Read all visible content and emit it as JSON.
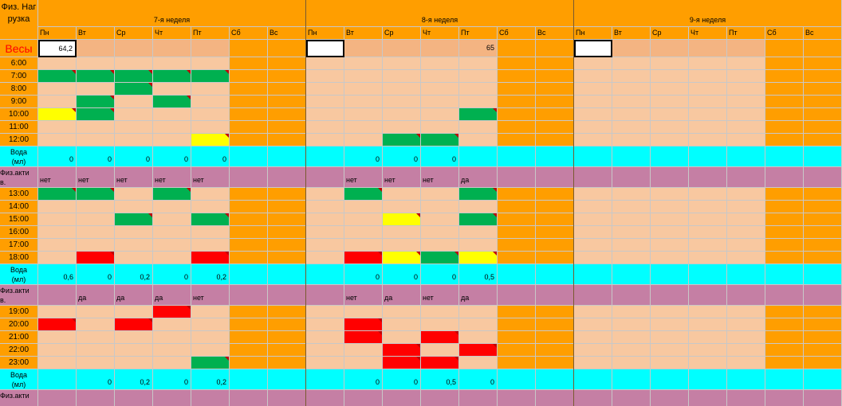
{
  "colors": {
    "orange": "#ff9e00",
    "peach": "#f8c8a0",
    "peach_alt": "#f4b482",
    "green": "#00b050",
    "yellow": "#ffff00",
    "red": "#ff0000",
    "cyan": "#00ffff",
    "mauve": "#c57fa4",
    "white": "#ffffff",
    "weight_red": "#ff0000"
  },
  "corner_label": "Физ. Нагрузка",
  "weights_label": "Весы",
  "weeks": [
    "7-я неделя",
    "8-я неделя",
    "9-я неделя"
  ],
  "days": [
    "Пн",
    "Вт",
    "Ср",
    "Чт",
    "Пт",
    "Сб",
    "Вс"
  ],
  "weights": [
    [
      "64,2",
      "",
      "",
      "",
      "",
      "",
      ""
    ],
    [
      "",
      "",
      "",
      "",
      "65",
      "",
      ""
    ],
    [
      "",
      "",
      "",
      "",
      "",
      "",
      ""
    ]
  ],
  "rows": [
    {
      "type": "time",
      "label": "6:00",
      "cells": [
        [
          "",
          "",
          "",
          "",
          "",
          "",
          ""
        ],
        [
          "",
          "",
          "",
          "",
          "",
          "",
          ""
        ],
        [
          "",
          "",
          "",
          "",
          "",
          "",
          ""
        ]
      ]
    },
    {
      "type": "time",
      "label": "7:00",
      "cells": [
        [
          "G",
          "G",
          "G",
          "G",
          "G",
          "",
          ""
        ],
        [
          "",
          "",
          "",
          "",
          "",
          "",
          ""
        ],
        [
          "",
          "",
          "",
          "",
          "",
          "",
          ""
        ]
      ]
    },
    {
      "type": "time",
      "label": "8:00",
      "cells": [
        [
          "",
          "",
          "G",
          "",
          "",
          "",
          ""
        ],
        [
          "",
          "",
          "",
          "",
          "",
          "",
          ""
        ],
        [
          "",
          "",
          "",
          "",
          "",
          "",
          ""
        ]
      ]
    },
    {
      "type": "time",
      "label": "9:00",
      "cells": [
        [
          "",
          "G",
          "",
          "G",
          "",
          "",
          ""
        ],
        [
          "",
          "",
          "",
          "",
          "",
          "",
          ""
        ],
        [
          "",
          "",
          "",
          "",
          "",
          "",
          ""
        ]
      ]
    },
    {
      "type": "time",
      "label": "10:00",
      "cells": [
        [
          "Y",
          "G",
          "",
          "",
          "",
          "",
          ""
        ],
        [
          "",
          "",
          "",
          "",
          "G",
          "",
          ""
        ],
        [
          "",
          "",
          "",
          "",
          "",
          "",
          ""
        ]
      ]
    },
    {
      "type": "time",
      "label": "11:00",
      "cells": [
        [
          "",
          "",
          "",
          "",
          "",
          "",
          ""
        ],
        [
          "",
          "",
          "",
          "",
          "",
          "",
          ""
        ],
        [
          "",
          "",
          "",
          "",
          "",
          "",
          ""
        ]
      ]
    },
    {
      "type": "time",
      "label": "12:00",
      "cells": [
        [
          "",
          "",
          "",
          "",
          "Y",
          "",
          ""
        ],
        [
          "",
          "",
          "G",
          "G",
          "",
          "",
          ""
        ],
        [
          "",
          "",
          "",
          "",
          "",
          "",
          ""
        ]
      ]
    },
    {
      "type": "water",
      "label1": "Вода",
      "label2": "(мл)",
      "values": [
        [
          "0",
          "0",
          "0",
          "0",
          "0",
          "",
          ""
        ],
        [
          "",
          "0",
          "0",
          "0",
          "",
          "",
          ""
        ],
        [
          "",
          "",
          "",
          "",
          "",
          "",
          ""
        ]
      ]
    },
    {
      "type": "activity",
      "label1": "Физ.акти",
      "label2": "в.",
      "values": [
        [
          "нет",
          "нет",
          "нет",
          "нет",
          "нет",
          "",
          ""
        ],
        [
          "",
          "нет",
          "нет",
          "нет",
          "да",
          "",
          ""
        ],
        [
          "",
          "",
          "",
          "",
          "",
          "",
          ""
        ]
      ]
    },
    {
      "type": "time",
      "label": "13:00",
      "cells": [
        [
          "G",
          "G",
          "",
          "G",
          "",
          "",
          ""
        ],
        [
          "",
          "G",
          "",
          "",
          "G",
          "",
          ""
        ],
        [
          "",
          "",
          "",
          "",
          "",
          "",
          ""
        ]
      ]
    },
    {
      "type": "time",
      "label": "14:00",
      "cells": [
        [
          "",
          "",
          "",
          "",
          "",
          "",
          ""
        ],
        [
          "",
          "",
          "",
          "",
          "",
          "",
          ""
        ],
        [
          "",
          "",
          "",
          "",
          "",
          "",
          ""
        ]
      ]
    },
    {
      "type": "time",
      "label": "15:00",
      "cells": [
        [
          "",
          "",
          "G",
          "",
          "G",
          "",
          ""
        ],
        [
          "",
          "",
          "Y",
          "",
          "G",
          "",
          ""
        ],
        [
          "",
          "",
          "",
          "",
          "",
          "",
          ""
        ]
      ]
    },
    {
      "type": "time",
      "label": "16:00",
      "cells": [
        [
          "",
          "",
          "",
          "",
          "",
          "",
          ""
        ],
        [
          "",
          "",
          "",
          "",
          "",
          "",
          ""
        ],
        [
          "",
          "",
          "",
          "",
          "",
          "",
          ""
        ]
      ]
    },
    {
      "type": "time",
      "label": "17:00",
      "cells": [
        [
          "",
          "",
          "",
          "",
          "",
          "",
          ""
        ],
        [
          "",
          "",
          "",
          "",
          "",
          "",
          ""
        ],
        [
          "",
          "",
          "",
          "",
          "",
          "",
          ""
        ]
      ]
    },
    {
      "type": "time",
      "label": "18:00",
      "cells": [
        [
          "",
          "R",
          "",
          "",
          "R",
          "",
          ""
        ],
        [
          "",
          "R",
          "Y",
          "G",
          "Y",
          "",
          ""
        ],
        [
          "",
          "",
          "",
          "",
          "",
          "",
          ""
        ]
      ]
    },
    {
      "type": "water",
      "label1": "Вода",
      "label2": "(мл)",
      "values": [
        [
          "0,6",
          "0",
          "0,2",
          "0",
          "0,2",
          "",
          ""
        ],
        [
          "",
          "0",
          "0",
          "0",
          "0,5",
          "",
          ""
        ],
        [
          "",
          "",
          "",
          "",
          "",
          "",
          ""
        ]
      ]
    },
    {
      "type": "activity",
      "label1": "Физ.акти",
      "label2": "в.",
      "values": [
        [
          "",
          "да",
          "да",
          "да",
          "нет",
          "",
          ""
        ],
        [
          "",
          "нет",
          "да",
          "нет",
          "да",
          "",
          ""
        ],
        [
          "",
          "",
          "",
          "",
          "",
          "",
          ""
        ]
      ]
    },
    {
      "type": "time",
      "label": "19:00",
      "cells": [
        [
          "",
          "",
          "",
          "R",
          "",
          "",
          ""
        ],
        [
          "",
          "",
          "",
          "",
          "",
          "",
          ""
        ],
        [
          "",
          "",
          "",
          "",
          "",
          "",
          ""
        ]
      ]
    },
    {
      "type": "time",
      "label": "20:00",
      "cells": [
        [
          "R",
          "",
          "R",
          "",
          "",
          "",
          ""
        ],
        [
          "",
          "R",
          "",
          "",
          "",
          "",
          ""
        ],
        [
          "",
          "",
          "",
          "",
          "",
          "",
          ""
        ]
      ]
    },
    {
      "type": "time",
      "label": "21:00",
      "cells": [
        [
          "",
          "",
          "",
          "",
          "",
          "",
          ""
        ],
        [
          "",
          "R",
          "",
          "R",
          "",
          "",
          ""
        ],
        [
          "",
          "",
          "",
          "",
          "",
          "",
          ""
        ]
      ]
    },
    {
      "type": "time",
      "label": "22:00",
      "cells": [
        [
          "",
          "",
          "",
          "",
          "",
          "",
          ""
        ],
        [
          "",
          "",
          "R",
          "",
          "R",
          "",
          ""
        ],
        [
          "",
          "",
          "",
          "",
          "",
          "",
          ""
        ]
      ]
    },
    {
      "type": "time",
      "label": "23:00",
      "cells": [
        [
          "",
          "",
          "",
          "",
          "G",
          "",
          ""
        ],
        [
          "",
          "",
          "R",
          "R",
          "",
          "",
          ""
        ],
        [
          "",
          "",
          "",
          "",
          "",
          "",
          ""
        ]
      ]
    },
    {
      "type": "water",
      "label1": "Вода",
      "label2": "(мл)",
      "values": [
        [
          "",
          "0",
          "0,2",
          "0",
          "0,2",
          "",
          ""
        ],
        [
          "",
          "0",
          "0",
          "0,5",
          "0",
          "",
          ""
        ],
        [
          "",
          "",
          "",
          "",
          "",
          "",
          ""
        ]
      ]
    },
    {
      "type": "activity",
      "label1": "Физ.акти",
      "label2": "",
      "values": [
        [
          "",
          "",
          "",
          "",
          "",
          "",
          ""
        ],
        [
          "",
          "",
          "",
          "",
          "",
          "",
          ""
        ],
        [
          "",
          "",
          "",
          "",
          "",
          "",
          ""
        ]
      ]
    }
  ]
}
